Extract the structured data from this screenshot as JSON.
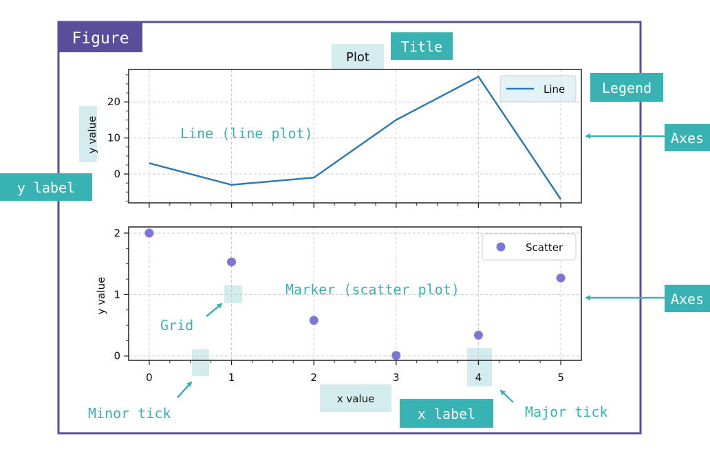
{
  "figure_label": "Figure",
  "plot_title": "Plot",
  "callouts": {
    "title": "Title",
    "legend": "Legend",
    "axes_top": "Axes",
    "axes_bottom": "Axes",
    "y_label": "y label",
    "x_label": "x label",
    "line_plot": "Line (line plot)",
    "marker_plot": "Marker (scatter plot)",
    "grid": "Grid",
    "minor_tick": "Minor tick",
    "major_tick": "Major tick"
  },
  "colors": {
    "figure_border": "#5a4e9c",
    "teal_callout": "#38b2b3",
    "light_highlight": "#d4ecee",
    "line_series": "#2f79b0",
    "scatter_series": "#7b78d3",
    "arrow": "#38b2b3"
  },
  "chart_data": [
    {
      "type": "line",
      "title": "Plot",
      "ylabel": "y value",
      "xlabel": "",
      "x": [
        0,
        1,
        2,
        3,
        4,
        5
      ],
      "series": [
        {
          "name": "Line",
          "values": [
            3,
            -3,
            -1,
            15,
            27,
            -7
          ]
        }
      ],
      "xlim": [
        -0.25,
        5.25
      ],
      "ylim": [
        -8,
        29
      ],
      "yticks": [
        0,
        10,
        20
      ],
      "ytick_labels": [
        "0",
        "10",
        "20"
      ],
      "grid": true,
      "legend": "upper right"
    },
    {
      "type": "scatter",
      "ylabel": "y value",
      "xlabel": "x value",
      "x": [
        0,
        1,
        2,
        3,
        4,
        5
      ],
      "series": [
        {
          "name": "Scatter",
          "values": [
            2.0,
            1.53,
            0.58,
            0.01,
            0.34,
            1.27
          ]
        }
      ],
      "xlim": [
        -0.25,
        5.25
      ],
      "ylim": [
        -0.07,
        2.1
      ],
      "xticks": [
        0,
        1,
        2,
        3,
        4,
        5
      ],
      "xtick_labels": [
        "0",
        "1",
        "2",
        "3",
        "4",
        "5"
      ],
      "yticks": [
        0,
        1,
        2
      ],
      "ytick_labels": [
        "0",
        "1",
        "2"
      ],
      "grid": true,
      "legend": "upper right"
    }
  ]
}
